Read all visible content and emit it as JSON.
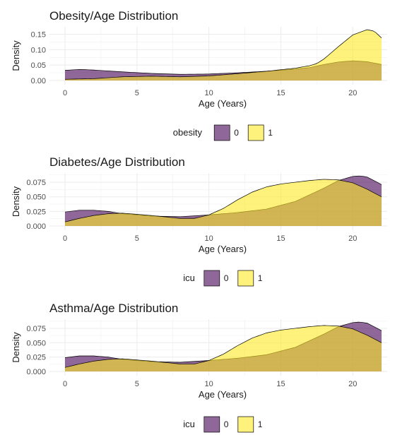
{
  "chart_data": [
    {
      "type": "area",
      "title": "Obesity/Age Distribution",
      "xlabel": "Age (Years)",
      "ylabel": "Density",
      "xlim": [
        0,
        22
      ],
      "ylim": [
        0,
        0.165
      ],
      "x_ticks": [
        0,
        5,
        10,
        15,
        20
      ],
      "y_ticks": [
        0.0,
        0.05,
        0.1,
        0.15
      ],
      "y_tick_labels": [
        "0.00",
        "0.05",
        "0.10",
        "0.15"
      ],
      "grid": true,
      "legend": {
        "title": "obesity",
        "position": "bottom",
        "entries": [
          "0",
          "1"
        ]
      },
      "series": [
        {
          "name": "0",
          "color": "#440154",
          "x": [
            0,
            1,
            2,
            4,
            6,
            8,
            10,
            12,
            14,
            16,
            17,
            18,
            19,
            20,
            21,
            22
          ],
          "y": [
            0.033,
            0.036,
            0.034,
            0.028,
            0.023,
            0.02,
            0.021,
            0.025,
            0.03,
            0.037,
            0.042,
            0.052,
            0.06,
            0.064,
            0.061,
            0.052
          ]
        },
        {
          "name": "1",
          "color": "#FDE725",
          "x": [
            0,
            1,
            2,
            4,
            6,
            8,
            10,
            12,
            14,
            16,
            17,
            17.5,
            18,
            19,
            20,
            21,
            21.5,
            22
          ],
          "y": [
            0.004,
            0.005,
            0.006,
            0.012,
            0.014,
            0.012,
            0.015,
            0.022,
            0.03,
            0.04,
            0.048,
            0.055,
            0.07,
            0.11,
            0.148,
            0.165,
            0.16,
            0.138
          ]
        }
      ]
    },
    {
      "type": "area",
      "title": "Diabetes/Age Distribution",
      "xlabel": "Age (Years)",
      "ylabel": "Density",
      "xlim": [
        0,
        22
      ],
      "ylim": [
        0,
        0.086
      ],
      "x_ticks": [
        0,
        5,
        10,
        15,
        20
      ],
      "y_ticks": [
        0.0,
        0.025,
        0.05,
        0.075
      ],
      "y_tick_labels": [
        "0.000",
        "0.025",
        "0.050",
        "0.075"
      ],
      "grid": true,
      "legend": {
        "title": "icu",
        "position": "bottom",
        "entries": [
          "0",
          "1"
        ]
      },
      "series": [
        {
          "name": "0",
          "color": "#440154",
          "x": [
            0,
            1,
            2,
            3,
            4,
            6,
            8,
            10,
            12,
            14,
            16,
            18,
            19,
            20,
            20.5,
            21,
            22
          ],
          "y": [
            0.024,
            0.027,
            0.027,
            0.025,
            0.021,
            0.017,
            0.016,
            0.019,
            0.023,
            0.029,
            0.042,
            0.065,
            0.078,
            0.085,
            0.086,
            0.084,
            0.071
          ]
        },
        {
          "name": "1",
          "color": "#FDE725",
          "x": [
            0,
            1,
            2,
            3,
            4,
            6,
            8,
            9,
            10,
            11,
            12,
            13,
            14,
            15,
            16,
            17,
            18,
            19,
            20,
            21,
            22
          ],
          "y": [
            0.007,
            0.013,
            0.018,
            0.021,
            0.022,
            0.018,
            0.013,
            0.013,
            0.019,
            0.03,
            0.045,
            0.058,
            0.067,
            0.072,
            0.075,
            0.078,
            0.08,
            0.079,
            0.074,
            0.063,
            0.05
          ]
        }
      ]
    },
    {
      "type": "area",
      "title": "Asthma/Age Distribution",
      "xlabel": "Age (Years)",
      "ylabel": "Density",
      "xlim": [
        0,
        22
      ],
      "ylim": [
        0,
        0.086
      ],
      "x_ticks": [
        0,
        5,
        10,
        15,
        20
      ],
      "y_ticks": [
        0.0,
        0.025,
        0.05,
        0.075
      ],
      "y_tick_labels": [
        "0.000",
        "0.025",
        "0.050",
        "0.075"
      ],
      "grid": true,
      "legend": {
        "title": "icu",
        "position": "bottom",
        "entries": [
          "0",
          "1"
        ]
      },
      "series": [
        {
          "name": "0",
          "color": "#440154",
          "x": [
            0,
            1,
            2,
            3,
            4,
            6,
            8,
            10,
            12,
            14,
            16,
            18,
            19,
            20,
            20.5,
            21,
            22
          ],
          "y": [
            0.024,
            0.027,
            0.027,
            0.025,
            0.021,
            0.017,
            0.016,
            0.019,
            0.023,
            0.029,
            0.042,
            0.065,
            0.078,
            0.085,
            0.086,
            0.084,
            0.071
          ]
        },
        {
          "name": "1",
          "color": "#FDE725",
          "x": [
            0,
            1,
            2,
            3,
            4,
            6,
            8,
            9,
            10,
            11,
            12,
            13,
            14,
            15,
            16,
            17,
            18,
            19,
            20,
            21,
            22
          ],
          "y": [
            0.007,
            0.013,
            0.018,
            0.021,
            0.022,
            0.018,
            0.013,
            0.013,
            0.019,
            0.03,
            0.045,
            0.058,
            0.067,
            0.072,
            0.075,
            0.078,
            0.08,
            0.079,
            0.074,
            0.063,
            0.05
          ]
        }
      ]
    }
  ]
}
